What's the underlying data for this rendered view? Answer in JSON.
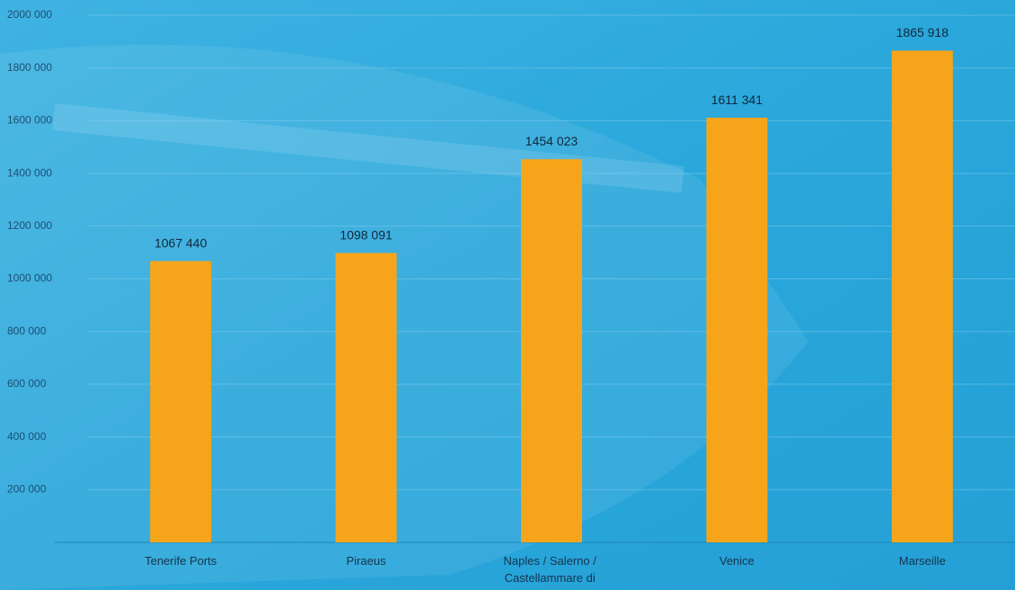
{
  "chart_data": {
    "type": "bar",
    "categories": [
      "Tenerife Ports",
      "Piraeus",
      "Naples / Salerno / Castellammare di Stabia",
      "Venice",
      "Marseille"
    ],
    "values": [
      1067440,
      1098091,
      1454023,
      1611341,
      1865918
    ],
    "value_labels": [
      "1067 440",
      "1098 091",
      "1454 023",
      "1611 341",
      "1865 918"
    ],
    "color": "#f6a51b",
    "ylim": [
      0,
      2000000
    ],
    "yticks": [
      {
        "value": 200000,
        "label": "200 000"
      },
      {
        "value": 400000,
        "label": "400 000"
      },
      {
        "value": 600000,
        "label": "600 000"
      },
      {
        "value": 800000,
        "label": "800 000"
      },
      {
        "value": 1000000,
        "label": "1000 000"
      },
      {
        "value": 1200000,
        "label": "1200 000"
      },
      {
        "value": 1400000,
        "label": "1400 000"
      },
      {
        "value": 1600000,
        "label": "1600 000"
      },
      {
        "value": 1800000,
        "label": "1800 000"
      },
      {
        "value": 2000000,
        "label": "2000 000"
      }
    ],
    "grid": true
  }
}
